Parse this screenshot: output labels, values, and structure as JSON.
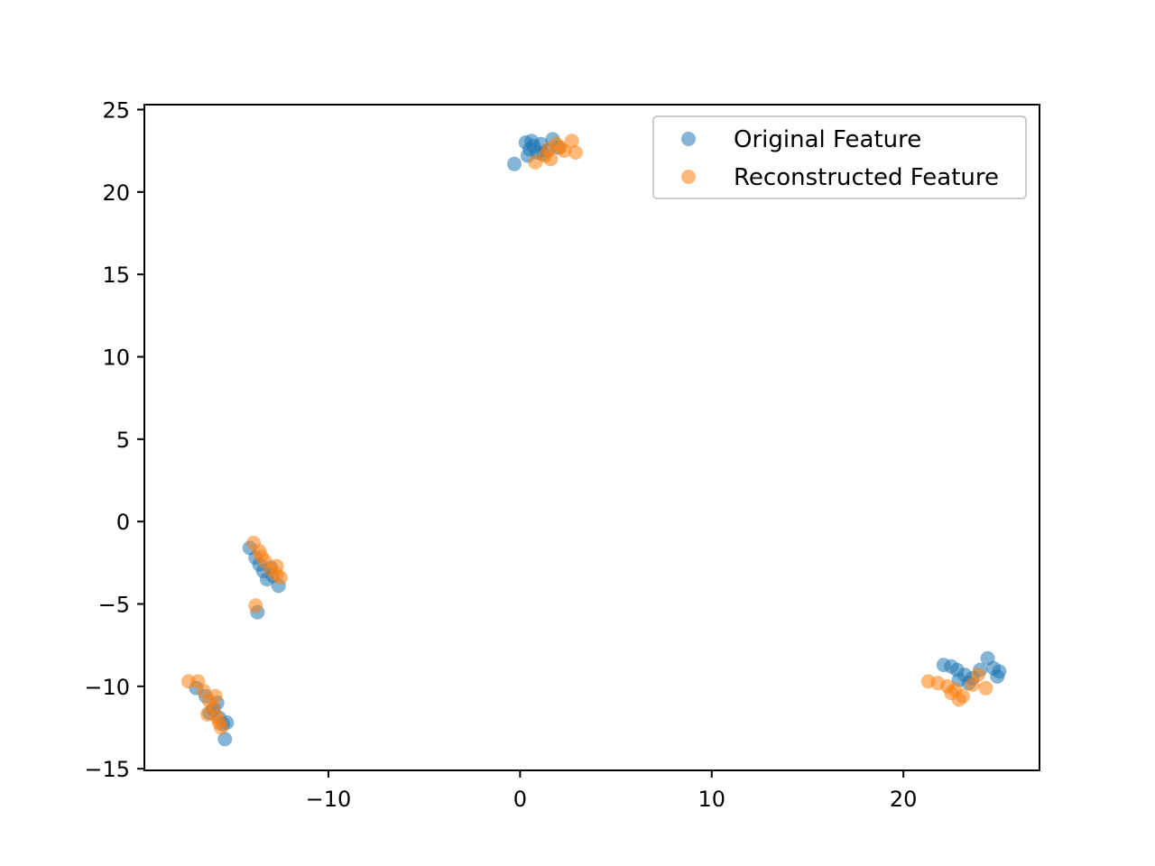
{
  "chart_data": {
    "type": "scatter",
    "title": "",
    "xlabel": "",
    "ylabel": "",
    "xlim": [
      -19.6,
      27.1
    ],
    "ylim": [
      -15.1,
      25.3
    ],
    "x_ticks": [
      -10,
      0,
      10,
      20
    ],
    "x_tick_labels": [
      "−10",
      "0",
      "10",
      "20"
    ],
    "y_ticks": [
      25,
      20,
      15,
      10,
      5,
      0,
      -5,
      -10,
      -15
    ],
    "y_tick_labels": [
      "25",
      "20",
      "15",
      "10",
      "5",
      "0",
      "−5",
      "−10",
      "−15"
    ],
    "grid": false,
    "legend_position": "top-right",
    "series": [
      {
        "name": "Original Feature",
        "color": "#1f77b4",
        "points": [
          [
            0.3,
            23.0
          ],
          [
            0.5,
            22.6
          ],
          [
            0.4,
            22.2
          ],
          [
            0.7,
            22.8
          ],
          [
            0.9,
            22.4
          ],
          [
            1.1,
            22.9
          ],
          [
            1.4,
            22.5
          ],
          [
            1.7,
            23.2
          ],
          [
            2.0,
            22.7
          ],
          [
            1.2,
            22.3
          ],
          [
            -0.3,
            21.7
          ],
          [
            0.6,
            23.1
          ],
          [
            -14.1,
            -1.6
          ],
          [
            -13.8,
            -2.2
          ],
          [
            -13.6,
            -2.6
          ],
          [
            -13.4,
            -3.0
          ],
          [
            -13.2,
            -3.5
          ],
          [
            -12.9,
            -3.3
          ],
          [
            -12.6,
            -3.9
          ],
          [
            -13.0,
            -2.8
          ],
          [
            -13.7,
            -5.5
          ],
          [
            -16.9,
            -10.1
          ],
          [
            -16.4,
            -10.6
          ],
          [
            -16.0,
            -11.4
          ],
          [
            -15.7,
            -11.9
          ],
          [
            -15.5,
            -12.3
          ],
          [
            -15.4,
            -13.2
          ],
          [
            -15.8,
            -11.0
          ],
          [
            -16.2,
            -11.6
          ],
          [
            -15.3,
            -12.2
          ],
          [
            22.1,
            -8.7
          ],
          [
            22.5,
            -8.8
          ],
          [
            22.8,
            -9.0
          ],
          [
            23.2,
            -9.3
          ],
          [
            23.6,
            -9.5
          ],
          [
            24.0,
            -9.0
          ],
          [
            24.4,
            -8.3
          ],
          [
            24.7,
            -8.9
          ],
          [
            25.0,
            -9.1
          ],
          [
            24.9,
            -9.4
          ],
          [
            23.4,
            -9.8
          ],
          [
            22.9,
            -9.6
          ]
        ]
      },
      {
        "name": "Reconstructed Feature",
        "color": "#ff7f0e",
        "points": [
          [
            0.8,
            21.8
          ],
          [
            1.3,
            22.2
          ],
          [
            1.5,
            22.6
          ],
          [
            1.9,
            22.9
          ],
          [
            2.3,
            22.5
          ],
          [
            2.7,
            23.1
          ],
          [
            2.9,
            22.4
          ],
          [
            1.6,
            22.0
          ],
          [
            2.1,
            22.7
          ],
          [
            -13.9,
            -1.3
          ],
          [
            -13.6,
            -1.8
          ],
          [
            -13.3,
            -2.4
          ],
          [
            -13.0,
            -2.9
          ],
          [
            -12.7,
            -3.2
          ],
          [
            -12.5,
            -3.4
          ],
          [
            -12.7,
            -2.7
          ],
          [
            -13.5,
            -2.1
          ],
          [
            -13.8,
            -5.1
          ],
          [
            -17.3,
            -9.7
          ],
          [
            -16.8,
            -9.7
          ],
          [
            -16.5,
            -10.3
          ],
          [
            -16.2,
            -10.9
          ],
          [
            -16.0,
            -11.3
          ],
          [
            -15.8,
            -11.9
          ],
          [
            -15.6,
            -12.5
          ],
          [
            -16.3,
            -11.7
          ],
          [
            -15.9,
            -10.6
          ],
          [
            -15.7,
            -12.2
          ],
          [
            21.3,
            -9.7
          ],
          [
            21.8,
            -9.8
          ],
          [
            22.3,
            -10.0
          ],
          [
            22.7,
            -10.2
          ],
          [
            23.1,
            -10.6
          ],
          [
            22.9,
            -10.8
          ],
          [
            23.6,
            -9.9
          ],
          [
            23.9,
            -9.3
          ],
          [
            24.3,
            -10.1
          ],
          [
            22.5,
            -10.4
          ]
        ]
      }
    ]
  }
}
